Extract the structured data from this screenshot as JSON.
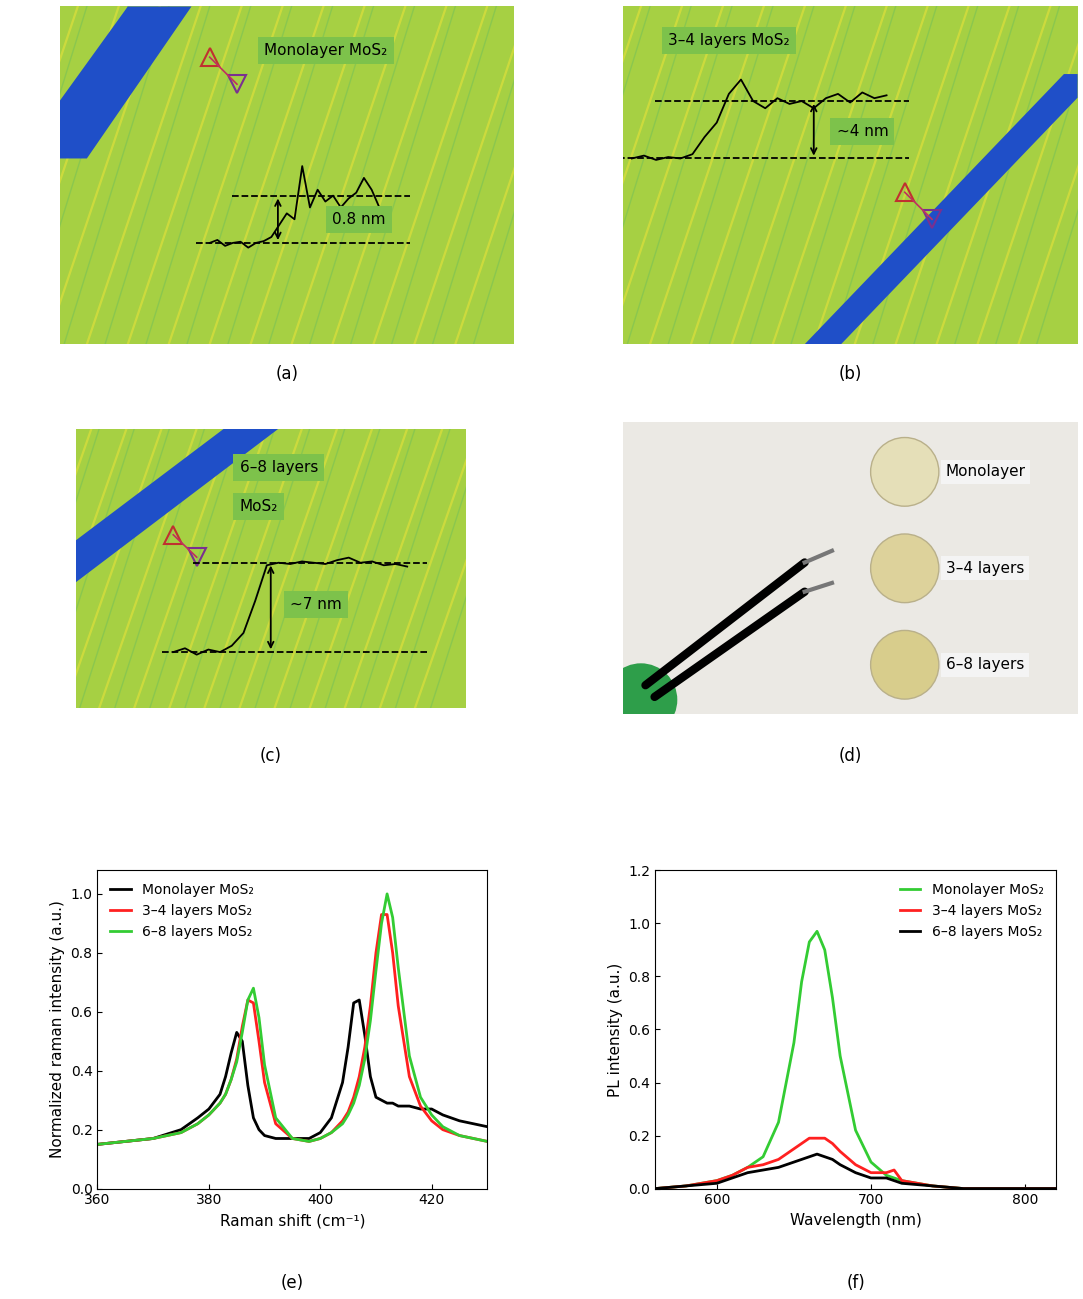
{
  "panels": [
    {
      "panel": "(a)",
      "type": "afm_image",
      "caption": [
        "Monolayer MoS₂"
      ],
      "height": "0.8 nm",
      "profile": [
        0,
        0.05,
        -0.05,
        0,
        0.02,
        -0.08,
        0,
        0.03,
        0.1,
        0.3,
        0.5,
        0.4,
        1.3,
        0.6,
        0.9,
        0.7,
        0.8,
        0.6,
        0.75,
        0.85,
        1.1,
        0.9,
        0.6,
        0.5
      ],
      "levels": [
        0,
        0.8
      ]
    },
    {
      "panel": "(b)",
      "type": "afm_image",
      "caption": [
        "3–4 layers MoS₂"
      ],
      "height": "~4 nm",
      "profile": [
        0,
        0.2,
        -0.1,
        0.1,
        0,
        0.3,
        1.5,
        2.5,
        4.5,
        5.5,
        4.0,
        3.5,
        4.2,
        3.8,
        4.0,
        3.5,
        4.2,
        4.5,
        3.9,
        4.6,
        4.2,
        4.4
      ],
      "levels": [
        0,
        4
      ]
    },
    {
      "panel": "(c)",
      "type": "afm_image",
      "caption": [
        "6–8 layers",
        "MoS₂"
      ],
      "height": "∼7 nm",
      "profile": [
        0,
        0.3,
        -0.2,
        0.2,
        0,
        0.5,
        1.5,
        4,
        6.8,
        7,
        6.9,
        7.1,
        7.0,
        6.9,
        7.2,
        7.4,
        7.0,
        7.1,
        6.8,
        6.9,
        6.7
      ],
      "levels": [
        0,
        7
      ]
    },
    {
      "panel": "(d)",
      "type": "photo",
      "samples": [
        "Monolayer",
        "3–4 layers",
        "6–8 layers"
      ]
    }
  ],
  "chart_data": [
    {
      "panel": "(e)",
      "type": "line",
      "x_label": "Raman shift (cm⁻¹)",
      "y_label": "Normalized raman intensity (a.u.)",
      "x": [
        360,
        365,
        370,
        375,
        378,
        380,
        382,
        383,
        384,
        385,
        386,
        387,
        388,
        389,
        390,
        392,
        395,
        398,
        400,
        402,
        404,
        405,
        406,
        407,
        408,
        409,
        410,
        411,
        412,
        413,
        414,
        416,
        418,
        420,
        422,
        425,
        430
      ],
      "xlim": [
        360,
        430
      ],
      "xticks": [
        360,
        380,
        400,
        420
      ],
      "ylim": [
        0,
        1.08
      ],
      "yticks": [
        0.0,
        0.2,
        0.4,
        0.6,
        0.8,
        1.0
      ],
      "legend": "upper left",
      "series": [
        {
          "name": "Monolayer MoS₂",
          "color": "#000000",
          "values": [
            0.15,
            0.16,
            0.17,
            0.2,
            0.24,
            0.27,
            0.32,
            0.38,
            0.46,
            0.53,
            0.5,
            0.35,
            0.24,
            0.2,
            0.18,
            0.17,
            0.17,
            0.17,
            0.19,
            0.24,
            0.36,
            0.48,
            0.63,
            0.64,
            0.52,
            0.38,
            0.31,
            0.3,
            0.29,
            0.29,
            0.28,
            0.28,
            0.27,
            0.27,
            0.25,
            0.23,
            0.21
          ]
        },
        {
          "name": "3–4 layers MoS₂",
          "color": "#ff2020",
          "values": [
            0.15,
            0.16,
            0.17,
            0.19,
            0.22,
            0.25,
            0.29,
            0.32,
            0.37,
            0.44,
            0.55,
            0.64,
            0.63,
            0.5,
            0.36,
            0.22,
            0.17,
            0.16,
            0.17,
            0.19,
            0.23,
            0.26,
            0.31,
            0.38,
            0.48,
            0.62,
            0.8,
            0.93,
            0.93,
            0.8,
            0.62,
            0.38,
            0.28,
            0.23,
            0.2,
            0.18,
            0.16
          ]
        },
        {
          "name": "6–8 layers MoS₂",
          "color": "#33cc33",
          "values": [
            0.15,
            0.16,
            0.17,
            0.19,
            0.22,
            0.25,
            0.29,
            0.32,
            0.37,
            0.43,
            0.53,
            0.64,
            0.68,
            0.58,
            0.42,
            0.24,
            0.17,
            0.16,
            0.17,
            0.19,
            0.22,
            0.25,
            0.29,
            0.35,
            0.44,
            0.57,
            0.74,
            0.9,
            1.0,
            0.92,
            0.75,
            0.45,
            0.31,
            0.25,
            0.21,
            0.18,
            0.16
          ]
        }
      ]
    },
    {
      "panel": "(f)",
      "type": "line",
      "x_label": "Wavelength (nm)",
      "y_label": "PL intensity (a.u.)",
      "x": [
        560,
        580,
        600,
        610,
        620,
        630,
        640,
        650,
        655,
        660,
        665,
        670,
        675,
        680,
        690,
        700,
        710,
        715,
        720,
        740,
        760,
        780,
        800,
        820
      ],
      "xlim": [
        560,
        820
      ],
      "xticks": [
        600,
        700,
        800
      ],
      "ylim": [
        0,
        1.2
      ],
      "yticks": [
        0.0,
        0.2,
        0.4,
        0.6,
        0.8,
        1.0,
        1.2
      ],
      "legend": "upper right",
      "series": [
        {
          "name": "Monolayer MoS₂",
          "color": "#33cc33",
          "values": [
            0.0,
            0.01,
            0.03,
            0.05,
            0.08,
            0.12,
            0.25,
            0.55,
            0.78,
            0.93,
            0.97,
            0.9,
            0.72,
            0.5,
            0.22,
            0.1,
            0.05,
            0.04,
            0.03,
            0.01,
            0.0,
            0.0,
            0.0,
            0.0
          ]
        },
        {
          "name": "3–4 layers MoS₂",
          "color": "#ff2020",
          "values": [
            0.0,
            0.01,
            0.03,
            0.05,
            0.08,
            0.09,
            0.11,
            0.15,
            0.17,
            0.19,
            0.19,
            0.19,
            0.17,
            0.14,
            0.09,
            0.06,
            0.06,
            0.07,
            0.03,
            0.01,
            0.0,
            0.0,
            0.0,
            0.0
          ]
        },
        {
          "name": "6–8 layers MoS₂",
          "color": "#000000",
          "values": [
            0.0,
            0.01,
            0.02,
            0.04,
            0.06,
            0.07,
            0.08,
            0.1,
            0.11,
            0.12,
            0.13,
            0.12,
            0.11,
            0.09,
            0.06,
            0.04,
            0.04,
            0.03,
            0.02,
            0.01,
            0.0,
            0.0,
            0.0,
            0.0
          ]
        }
      ]
    }
  ]
}
